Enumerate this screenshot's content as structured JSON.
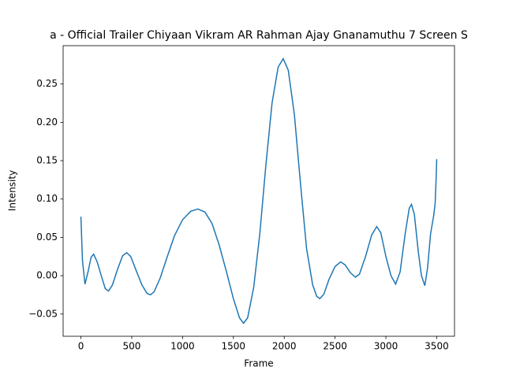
{
  "chart_data": {
    "type": "line",
    "title": "a - Official Trailer  Chiyaan Vikram  AR Rahman  Ajay Gnanamuthu  7 Screen S",
    "x_label": "Frame",
    "y_label": "Intensity",
    "xlim": [
      -175,
      3675
    ],
    "ylim": [
      -0.079,
      0.3
    ],
    "xticks": [
      0,
      500,
      1000,
      1500,
      2000,
      2500,
      3000,
      3500
    ],
    "yticks": [
      {
        "value": -0.05,
        "label": "−0.05"
      },
      {
        "value": 0,
        "label": "0.00"
      },
      0.05,
      {
        "value": 0.1,
        "label": "0.10"
      },
      0.15,
      {
        "value": 0.2,
        "label": "0.20"
      },
      0.25
    ],
    "series": [
      {
        "color": "#1f77b4",
        "x": [
          0,
          15,
          40,
          70,
          100,
          125,
          160,
          200,
          240,
          272,
          310,
          360,
          410,
          450,
          490,
          540,
          600,
          650,
          683,
          720,
          780,
          850,
          920,
          1000,
          1080,
          1150,
          1220,
          1290,
          1360,
          1430,
          1500,
          1560,
          1600,
          1640,
          1700,
          1760,
          1820,
          1880,
          1940,
          1990,
          2040,
          2100,
          2160,
          2220,
          2280,
          2320,
          2350,
          2390,
          2440,
          2500,
          2555,
          2600,
          2650,
          2700,
          2740,
          2800,
          2860,
          2910,
          2950,
          3000,
          3050,
          3096,
          3140,
          3190,
          3230,
          3252,
          3280,
          3320,
          3350,
          3383,
          3410,
          3440,
          3470,
          3485,
          3495,
          3500
        ],
        "values": [
          0.077,
          0.02,
          -0.011,
          0.005,
          0.024,
          0.028,
          0.018,
          0.0,
          -0.017,
          -0.02,
          -0.012,
          0.008,
          0.026,
          0.03,
          0.025,
          0.008,
          -0.012,
          -0.023,
          -0.025,
          -0.021,
          -0.003,
          0.025,
          0.052,
          0.073,
          0.084,
          0.087,
          0.083,
          0.068,
          0.04,
          0.006,
          -0.03,
          -0.055,
          -0.062,
          -0.055,
          -0.015,
          0.055,
          0.145,
          0.225,
          0.272,
          0.283,
          0.268,
          0.21,
          0.12,
          0.035,
          -0.012,
          -0.027,
          -0.03,
          -0.024,
          -0.005,
          0.012,
          0.018,
          0.014,
          0.004,
          -0.002,
          0.002,
          0.025,
          0.053,
          0.064,
          0.056,
          0.025,
          0.0,
          -0.011,
          0.005,
          0.055,
          0.088,
          0.093,
          0.08,
          0.03,
          0.0,
          -0.013,
          0.01,
          0.055,
          0.078,
          0.095,
          0.13,
          0.152
        ]
      }
    ]
  }
}
